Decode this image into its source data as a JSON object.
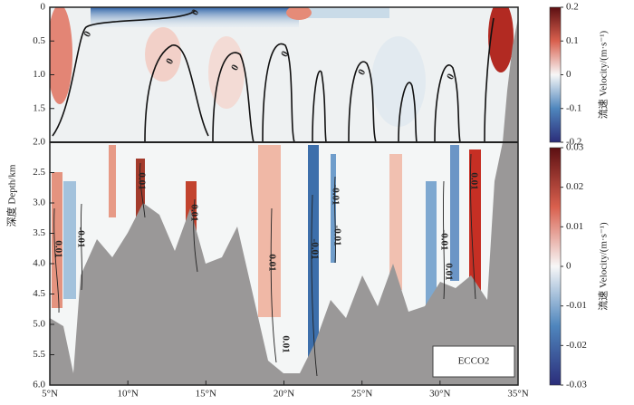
{
  "chart_data": {
    "type": "heatmap",
    "y_label": "深度 Depth/km",
    "xlim": [
      5,
      35
    ],
    "xticks": [
      {
        "value": 5,
        "label": "5°N"
      },
      {
        "value": 10,
        "label": "10°N"
      },
      {
        "value": 15,
        "label": "15°N"
      },
      {
        "value": 20,
        "label": "20°N"
      },
      {
        "value": 25,
        "label": "25°N"
      },
      {
        "value": 30,
        "label": "30°N"
      },
      {
        "value": 35,
        "label": "35°N"
      }
    ],
    "panels": [
      {
        "ylim": [
          0,
          2
        ],
        "yticks": [
          0,
          0.5,
          {
            "value": 1,
            "label": "1.0"
          },
          1.5
        ],
        "colorbar": {
          "lim": [
            -0.2,
            0.2
          ],
          "ticks": [
            0.2,
            0.1,
            0,
            -0.1,
            -0.2
          ],
          "label": "流速 Velocity/(m·s⁻¹)"
        },
        "contour_labels": [
          "0",
          "0",
          "0",
          "0",
          "0",
          "0",
          "0"
        ]
      },
      {
        "ylim": [
          2,
          6
        ],
        "yticks": [
          {
            "value": 2,
            "label": "2.0"
          },
          2.5,
          {
            "value": 3,
            "label": "3.0"
          },
          3.5,
          {
            "value": 4,
            "label": "4.0"
          },
          4.5,
          {
            "value": 5,
            "label": "5.0"
          },
          5.5,
          {
            "value": 6,
            "label": "6.0"
          }
        ],
        "colorbar": {
          "lim": [
            -0.03,
            0.03
          ],
          "ticks": [
            0.03,
            0.02,
            0.01,
            0,
            -0.01,
            -0.02,
            -0.03
          ],
          "label": "流速 Velocity/(m·s⁻¹)"
        },
        "contour_labels": [
          "0.01",
          "-0.01",
          "0.01",
          "0.01",
          "0.01",
          "0.01",
          "-0.01",
          "-0.01",
          "-0.01",
          "-0.01",
          "0.01",
          "0.01"
        ]
      }
    ],
    "annotation": "ECCO2"
  }
}
